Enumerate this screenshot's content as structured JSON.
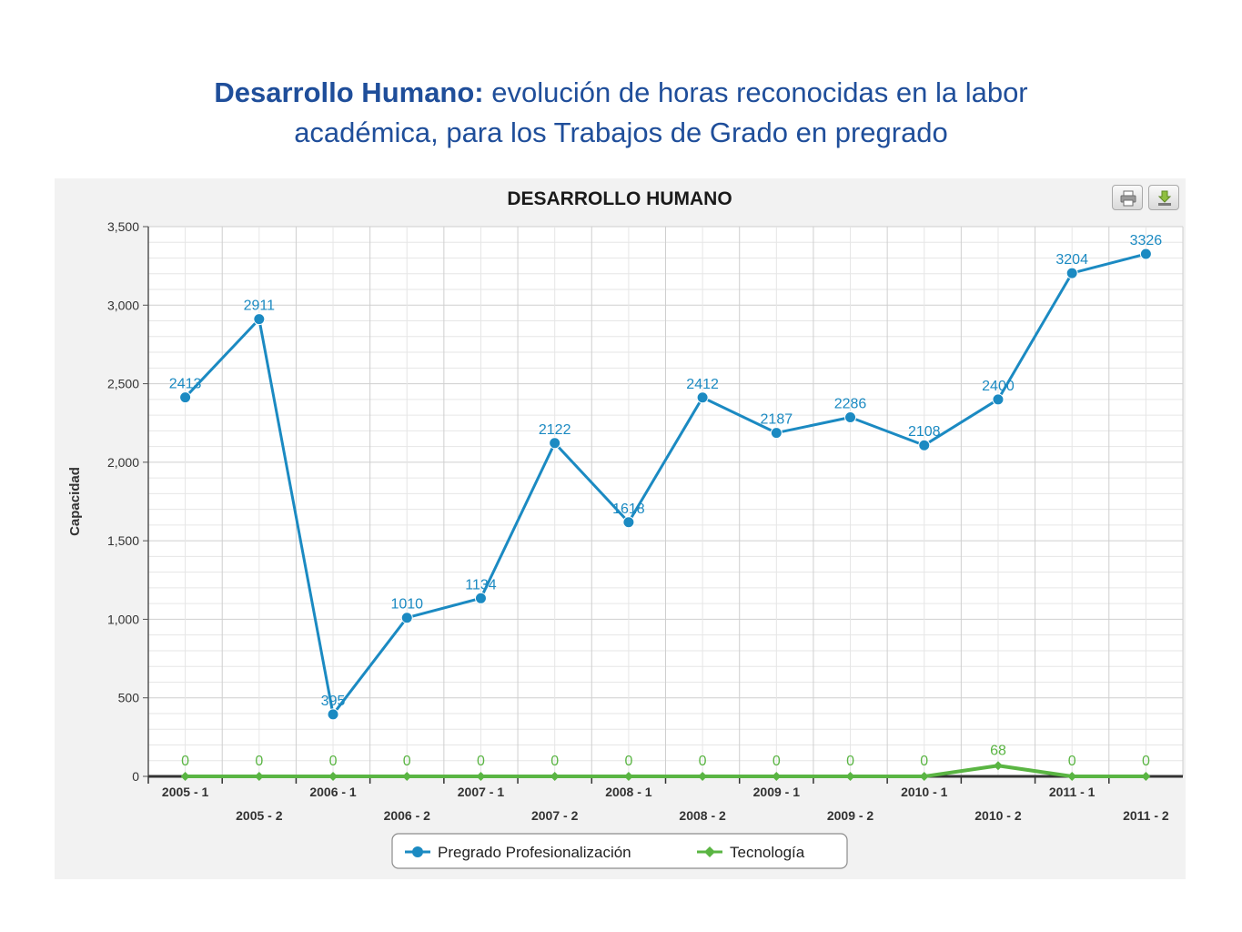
{
  "slide": {
    "title_bold": "Desarrollo Humano:",
    "title_rest_line1": " evolución de horas reconocidas en la labor",
    "title_line2": "académica, para los Trabajos de Grado en pregrado"
  },
  "toolbar": {
    "print_icon": "printer-icon",
    "download_icon": "download-icon"
  },
  "chart_data": {
    "type": "line",
    "title": "DESARROLLO HUMANO",
    "xlabel": "",
    "ylabel": "Capacidad",
    "ylim": [
      0,
      3500
    ],
    "yticks": [
      "0",
      "500",
      "1,000",
      "1,500",
      "2,000",
      "2,500",
      "3,000",
      "3,500"
    ],
    "ytick_values": [
      0,
      500,
      1000,
      1500,
      2000,
      2500,
      3000,
      3500
    ],
    "grid": true,
    "legend_position": "bottom-center",
    "categories": [
      "2005 - 1",
      "2005 - 2",
      "2006 - 1",
      "2006 - 2",
      "2007 - 1",
      "2007 - 2",
      "2008 - 1",
      "2008 - 2",
      "2009 - 1",
      "2009 - 2",
      "2010 - 1",
      "2010 - 2",
      "2011 - 1",
      "2011 - 2"
    ],
    "series": [
      {
        "name": "Pregrado Profesionalización",
        "color": "#1b8ac2",
        "marker": "circle",
        "values": [
          2413,
          2911,
          395,
          1010,
          1134,
          2122,
          1618,
          2412,
          2187,
          2286,
          2108,
          2400,
          3204,
          3326
        ],
        "labels": [
          "2413",
          "2911",
          "395",
          "1010",
          "1134",
          "2122",
          "1618",
          "2412",
          "2187",
          "2286",
          "2108",
          "2400",
          "3204",
          "3326"
        ]
      },
      {
        "name": "Tecnología",
        "color": "#5ab543",
        "marker": "diamond",
        "values": [
          0,
          0,
          0,
          0,
          0,
          0,
          0,
          0,
          0,
          0,
          0,
          68,
          0,
          0
        ],
        "labels": [
          "0",
          "0",
          "0",
          "0",
          "0",
          "0",
          "0",
          "0",
          "0",
          "0",
          "0",
          "68",
          "0",
          "0"
        ]
      }
    ]
  }
}
